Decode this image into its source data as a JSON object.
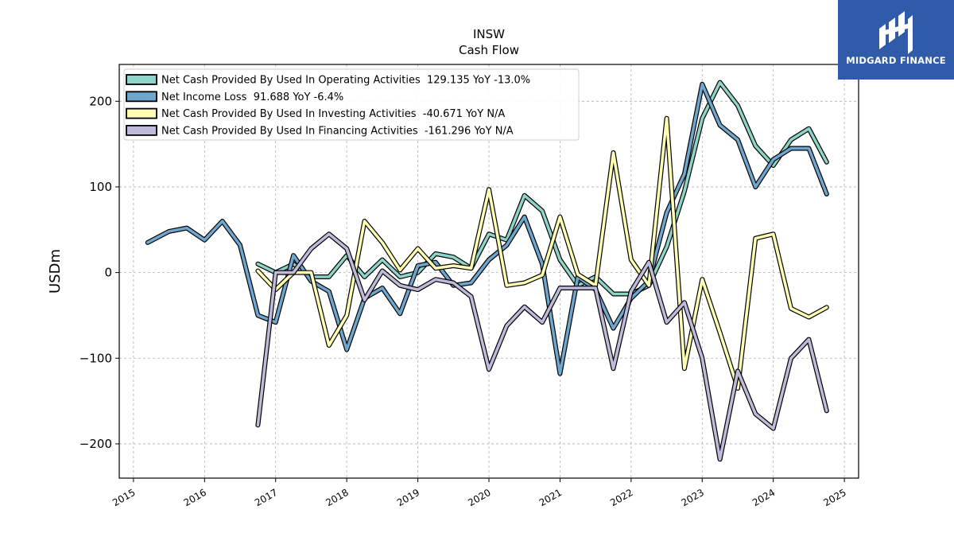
{
  "brand": {
    "name": "MIDGARD FINANCE",
    "bg_color": "#2f5ba8",
    "icon": "midgard-logo-icon"
  },
  "chart_data": {
    "type": "line",
    "title": "INSW",
    "subtitle": "Cash Flow",
    "ylabel": "USDm",
    "xlabel": "",
    "ylim": [
      -240,
      243
    ],
    "xlim": [
      2014.8,
      2025.2
    ],
    "xticks": [
      "2015",
      "2016",
      "2017",
      "2018",
      "2019",
      "2020",
      "2021",
      "2022",
      "2023",
      "2024",
      "2025"
    ],
    "yticks": [
      "−200",
      "−100",
      "0",
      "100",
      "200"
    ],
    "grid": true,
    "legend_position": "top-left",
    "series": [
      {
        "name": "Net Cash Provided By Used In Operating Activities  129.135 YoY -13.0%",
        "color": "#8dd3c7",
        "x": [
          2016.75,
          2017.0,
          2017.25,
          2017.5,
          2017.75,
          2018.0,
          2018.25,
          2018.5,
          2018.75,
          2019.0,
          2019.25,
          2019.5,
          2019.75,
          2020.0,
          2020.25,
          2020.5,
          2020.75,
          2021.0,
          2021.25,
          2021.5,
          2021.75,
          2022.0,
          2022.25,
          2022.5,
          2022.75,
          2023.0,
          2023.25,
          2023.5,
          2023.75,
          2024.0,
          2024.25,
          2024.5,
          2024.75
        ],
        "y": [
          10,
          0,
          10,
          -5,
          -5,
          20,
          -5,
          15,
          -5,
          0,
          22,
          18,
          5,
          45,
          38,
          90,
          72,
          15,
          -15,
          -5,
          -25,
          -25,
          -15,
          30,
          95,
          180,
          222,
          195,
          148,
          125,
          155,
          168,
          129
        ]
      },
      {
        "name": "Net Income Loss  91.688 YoY -6.4%",
        "color": "#6ea6cd",
        "x": [
          2015.2,
          2015.5,
          2015.75,
          2016.0,
          2016.25,
          2016.5,
          2016.75,
          2017.0,
          2017.25,
          2017.5,
          2017.75,
          2018.0,
          2018.25,
          2018.5,
          2018.75,
          2019.0,
          2019.25,
          2019.5,
          2019.75,
          2020.0,
          2020.25,
          2020.5,
          2020.75,
          2021.0,
          2021.25,
          2021.5,
          2021.75,
          2022.0,
          2022.25,
          2022.5,
          2022.75,
          2023.0,
          2023.25,
          2023.5,
          2023.75,
          2024.0,
          2024.25,
          2024.5,
          2024.75
        ],
        "y": [
          35,
          48,
          52,
          38,
          60,
          32,
          -50,
          -58,
          20,
          -10,
          -22,
          -90,
          -30,
          -18,
          -48,
          8,
          12,
          -15,
          -12,
          15,
          32,
          65,
          10,
          -118,
          -5,
          -20,
          -65,
          -30,
          -10,
          70,
          115,
          220,
          172,
          155,
          100,
          132,
          145,
          145,
          91.688
        ]
      },
      {
        "name": "Net Cash Provided By Used In Investing Activities  -40.671 YoY N/A",
        "color": "#ffffb3",
        "x": [
          2016.75,
          2017.0,
          2017.25,
          2017.5,
          2017.75,
          2018.0,
          2018.25,
          2018.5,
          2018.75,
          2019.0,
          2019.25,
          2019.5,
          2019.75,
          2020.0,
          2020.25,
          2020.5,
          2020.75,
          2021.0,
          2021.25,
          2021.5,
          2021.75,
          2022.0,
          2022.25,
          2022.5,
          2022.75,
          2023.0,
          2023.25,
          2023.5,
          2023.75,
          2024.0,
          2024.25,
          2024.5,
          2024.75
        ],
        "y": [
          2,
          -20,
          0,
          0,
          -85,
          -50,
          60,
          35,
          3,
          28,
          5,
          8,
          5,
          97,
          -15,
          -12,
          -3,
          65,
          -2,
          -15,
          140,
          15,
          -15,
          180,
          -112,
          -8,
          -70,
          -135,
          40,
          45,
          -42,
          -52,
          -40.671
        ]
      },
      {
        "name": "Net Cash Provided By Used In Financing Activities  -161.296 YoY N/A",
        "color": "#bebada",
        "x": [
          2016.75,
          2017.0,
          2017.25,
          2017.5,
          2017.75,
          2018.0,
          2018.25,
          2018.5,
          2018.75,
          2019.0,
          2019.25,
          2019.5,
          2019.75,
          2020.0,
          2020.25,
          2020.5,
          2020.75,
          2021.0,
          2021.25,
          2021.5,
          2021.75,
          2022.0,
          2022.25,
          2022.5,
          2022.75,
          2023.0,
          2023.25,
          2023.5,
          2023.75,
          2024.0,
          2024.25,
          2024.5,
          2024.75
        ],
        "y": [
          -178,
          0,
          0,
          28,
          45,
          28,
          -32,
          2,
          -15,
          -20,
          -8,
          -12,
          -28,
          -113,
          -62,
          -40,
          -58,
          -18,
          -18,
          -18,
          -112,
          -22,
          12,
          -58,
          -35,
          -100,
          -218,
          -115,
          -165,
          -182,
          -100,
          -78,
          -161.296
        ]
      }
    ]
  }
}
